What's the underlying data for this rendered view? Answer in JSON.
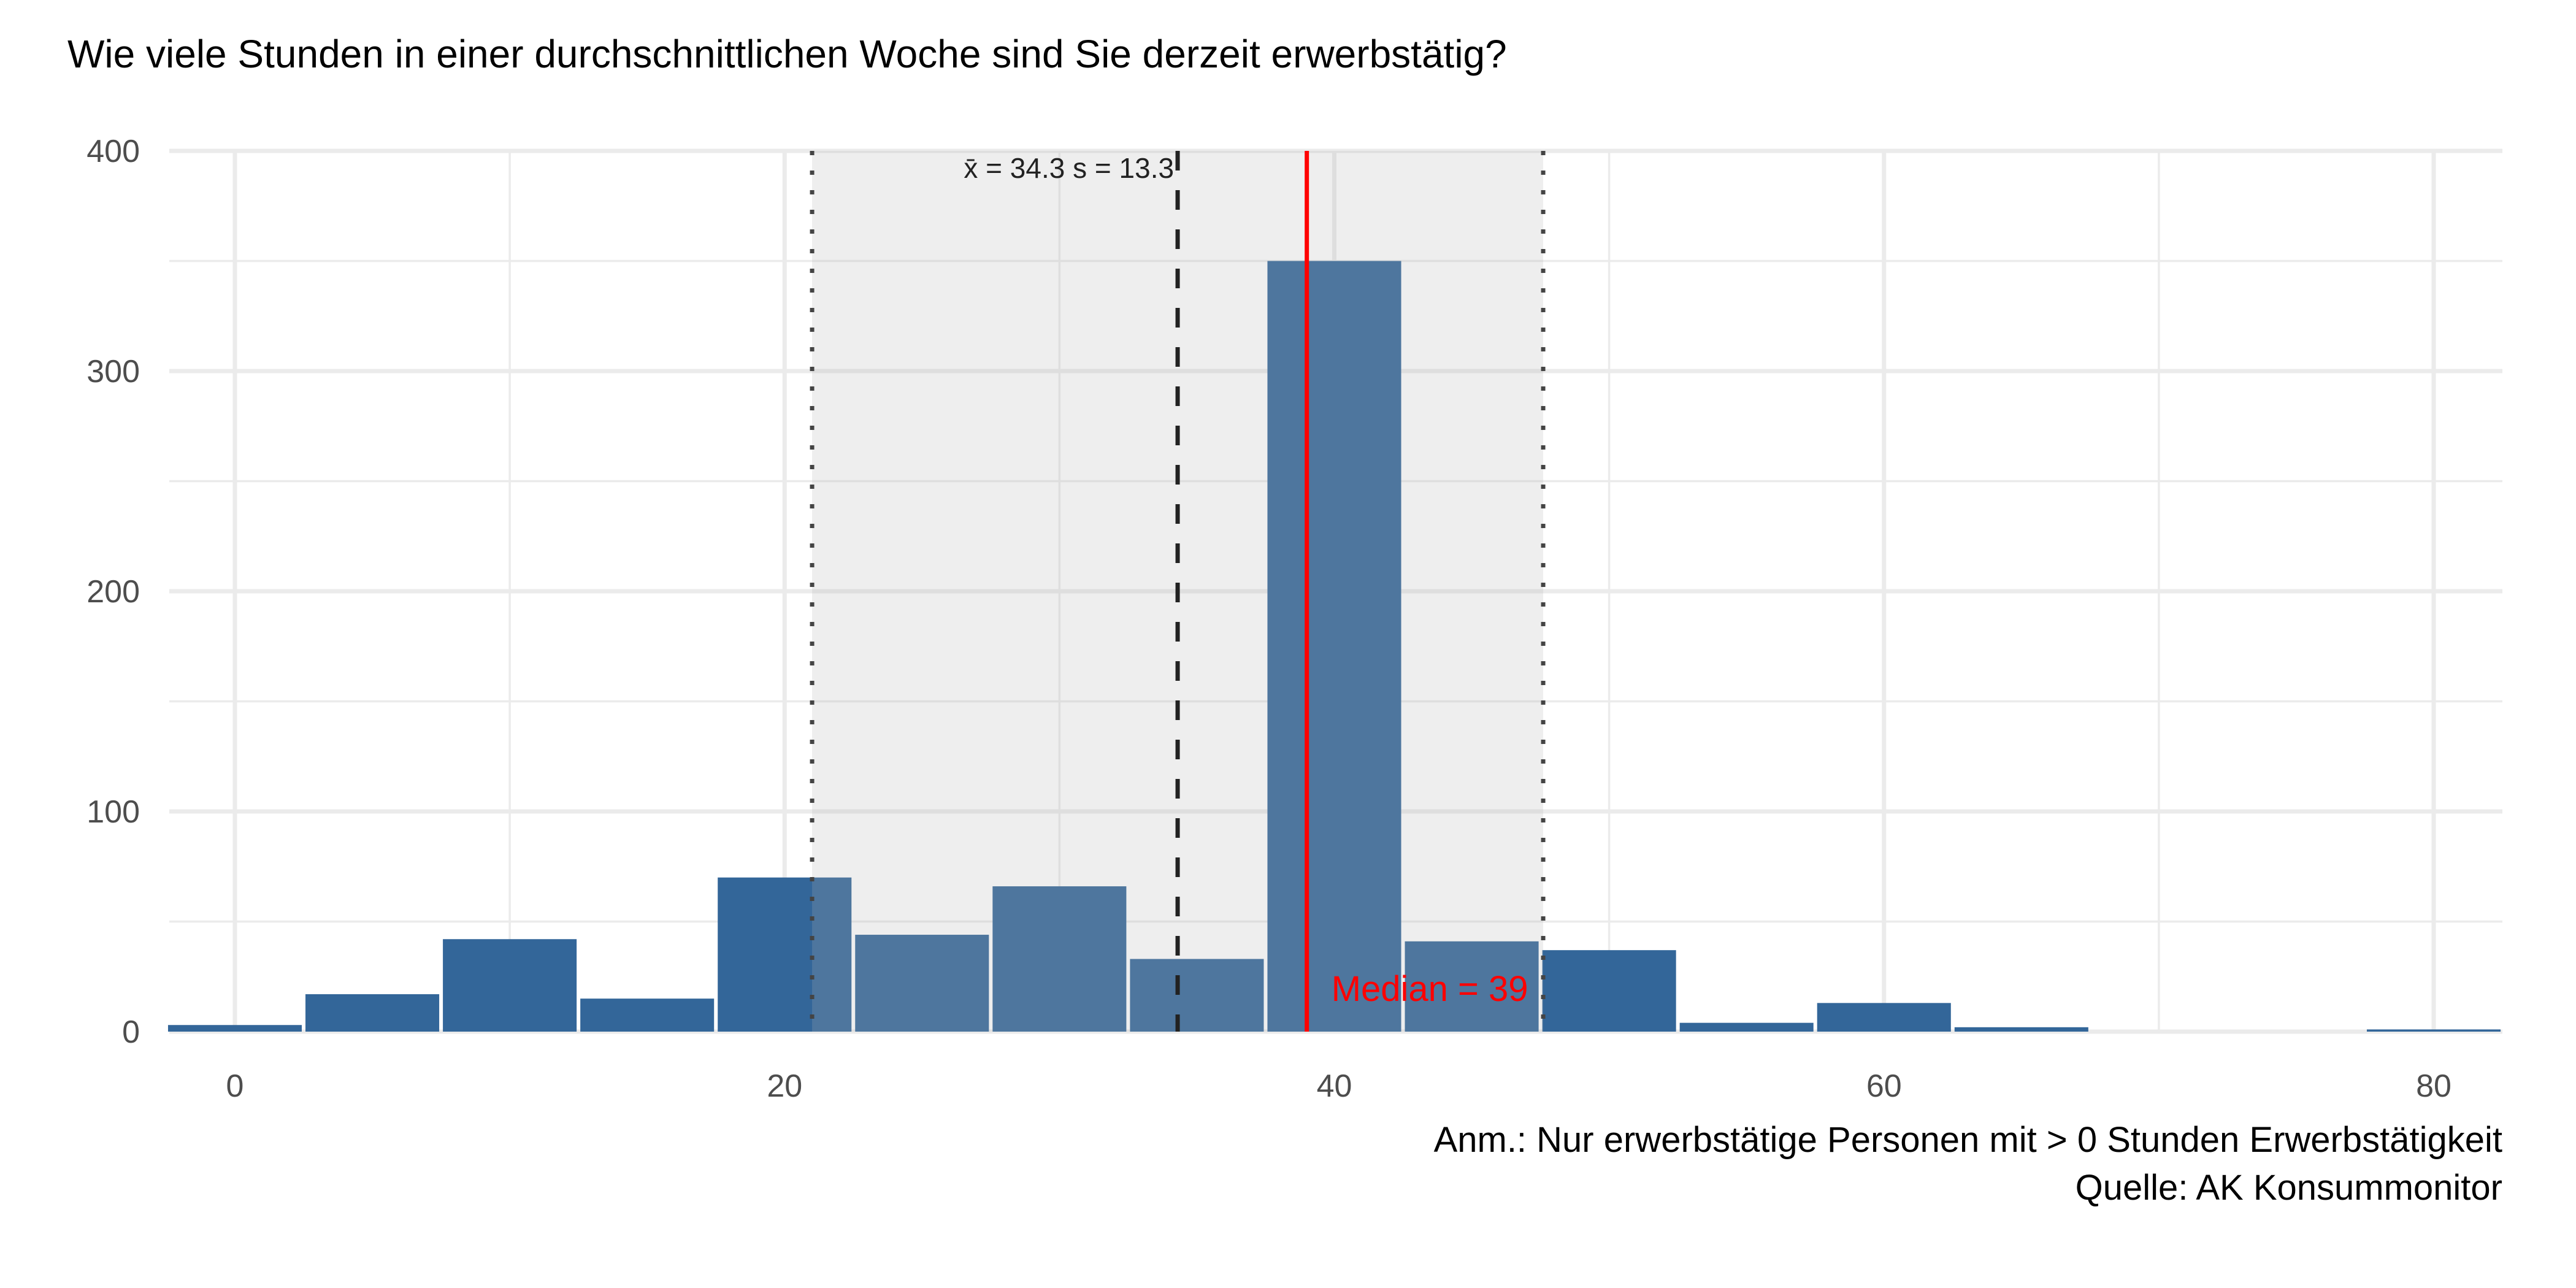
{
  "chart_data": {
    "type": "bar",
    "title": "Wie viele Stunden in einer durchschnittlichen Woche sind Sie derzeit erwerbstätig?",
    "xlabel": "",
    "ylabel": "",
    "xlim": [
      -3,
      82.5
    ],
    "ylim": [
      0,
      400
    ],
    "bin_width": 5,
    "x": [
      0,
      5,
      10,
      15,
      20,
      25,
      30,
      35,
      40,
      45,
      50,
      55,
      60,
      65,
      70,
      75,
      80
    ],
    "values": [
      3,
      17,
      42,
      15,
      70,
      44,
      66,
      33,
      350,
      41,
      37,
      4,
      13,
      2,
      0,
      0,
      1
    ],
    "x_ticks": [
      0,
      20,
      40,
      60,
      80
    ],
    "y_ticks": [
      0,
      100,
      200,
      300,
      400
    ],
    "grid": true,
    "mean": 34.3,
    "sd": 13.3,
    "median": 39,
    "sd_band": [
      21.0,
      47.6
    ],
    "mean_label": "x̄ = 34.3  s = 13.3",
    "median_label": "Median = 39",
    "colors": {
      "bar": "#336699",
      "median": "#ff0000",
      "band": "#b0b0b0",
      "grid": "#ebebeb"
    }
  },
  "caption": {
    "note": "Anm.: Nur erwerbstätige Personen mit > 0 Stunden Erwerbstätigkeit",
    "source": "Quelle: AK Konsummonitor"
  }
}
